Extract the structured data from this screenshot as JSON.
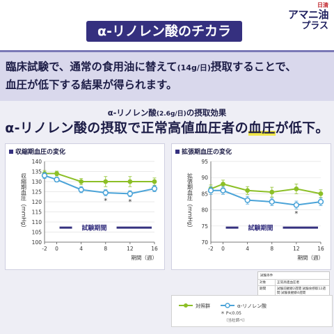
{
  "brand": {
    "line1": "日清",
    "line2": "アマニ油",
    "line3": "プラス"
  },
  "title": "α-リノレン酸のチカラ",
  "intro": {
    "line1_a": "臨床試験で、通常の食用油に替えて",
    "line1_small": "(14g/日)",
    "line1_b": "摂取することで、",
    "line2": "血圧が低下する結果が得られます。"
  },
  "subhead": {
    "a": "α-リノレン酸",
    "small": "(2.6g/日)",
    "b": "の摂取効果"
  },
  "headline": {
    "a": "α-リノレン酸の摂取で正常高値血圧者の",
    "highlight": "血圧",
    "b": "が低下。"
  },
  "colors": {
    "control": "#8cbf26",
    "ala": "#4aa3d8",
    "navy": "#35307f",
    "axis": "#555555"
  },
  "chart_data": [
    {
      "type": "line",
      "title": "収縮期血圧の変化",
      "ylabel": "収縮期血圧（mmHg）",
      "xlabel": "期間（週）",
      "ylim": [
        100,
        140
      ],
      "yticks": [
        100,
        105,
        110,
        115,
        120,
        125,
        130,
        135,
        140
      ],
      "x": [
        -2,
        0,
        4,
        8,
        12,
        16
      ],
      "xticks": [
        -2,
        0,
        4,
        8,
        12,
        16
      ],
      "period_label": "試験期間",
      "series": [
        {
          "name": "対照群",
          "values": [
            134,
            134,
            130,
            130,
            130,
            130
          ],
          "errors": [
            1.5,
            1.2,
            1.5,
            2.5,
            2.5,
            1.8
          ]
        },
        {
          "name": "α-リノレン酸",
          "values": [
            133,
            131,
            126,
            124.5,
            124,
            126.5
          ],
          "errors": [
            1.5,
            1.2,
            1.5,
            1.5,
            1.5,
            1.5
          ]
        }
      ],
      "significant_x": [
        8,
        12
      ],
      "significance_mark": "*"
    },
    {
      "type": "line",
      "title": "拡張期血圧の変化",
      "ylabel": "拡張期血圧（mmHg）",
      "xlabel": "期間（週）",
      "ylim": [
        70,
        95
      ],
      "yticks": [
        70,
        75,
        80,
        85,
        90,
        95
      ],
      "x": [
        -2,
        0,
        4,
        8,
        12,
        16
      ],
      "xticks": [
        -2,
        0,
        4,
        8,
        12,
        16
      ],
      "period_label": "試験期間",
      "series": [
        {
          "name": "対照群",
          "values": [
            86.5,
            88,
            86,
            85.5,
            86.5,
            85
          ],
          "errors": [
            1.2,
            1.2,
            1.2,
            1.5,
            1.5,
            1.2
          ]
        },
        {
          "name": "α-リノレン酸",
          "values": [
            86,
            86,
            83,
            82.5,
            81.5,
            82.5
          ],
          "errors": [
            1.2,
            1.2,
            1.2,
            1.2,
            1.2,
            1.2
          ]
        }
      ],
      "significant_x": [
        12
      ],
      "significance_mark": "*"
    }
  ],
  "legend": {
    "control": "対照群",
    "ala": "α-リノレン酸",
    "sig": "＊ P<0.05",
    "sig_note": "（当社調べ）"
  },
  "study": {
    "header": "試験条件",
    "rows": [
      {
        "k": "対象",
        "v": "正常高値血圧者"
      },
      {
        "k": "期間",
        "v": "試験前観察2週間 試験食摂取12週間 試験後観察4週間"
      },
      {
        "k": "試験食",
        "v": "試験区）α-リノレン酸含有油 14gを含んだロールパン 対照区）調合サラダ油を 14g含んだロールパン"
      }
    ]
  }
}
